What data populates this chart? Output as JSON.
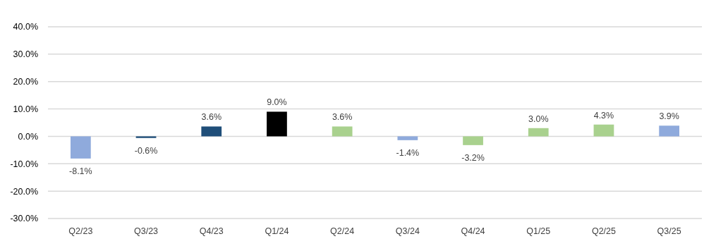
{
  "chart_data": {
    "type": "bar",
    "categories": [
      "Q2/23",
      "Q3/23",
      "Q4/23",
      "Q1/24",
      "Q2/24",
      "Q3/24",
      "Q4/24",
      "Q1/25",
      "Q2/25",
      "Q3/25"
    ],
    "values": [
      -8.1,
      -0.6,
      3.6,
      9.0,
      3.6,
      -1.4,
      -3.2,
      3.0,
      4.3,
      3.9
    ],
    "colors": [
      "#8faadc",
      "#1f4e79",
      "#1f4e79",
      "#000000",
      "#a9d18e",
      "#8faadc",
      "#a9d18e",
      "#a9d18e",
      "#a9d18e",
      "#8faadc"
    ],
    "value_labels": [
      "-8.1%",
      "-0.6%",
      "3.6%",
      "9.0%",
      "3.6%",
      "-1.4%",
      "-3.2%",
      "3.0%",
      "4.3%",
      "3.9%"
    ],
    "ylim": [
      -30,
      40
    ],
    "yticks": [
      {
        "value": -30,
        "label": "-30.0%"
      },
      {
        "value": -20,
        "label": "-20.0%"
      },
      {
        "value": -10,
        "label": "-10.0%"
      },
      {
        "value": 0,
        "label": "0.0%"
      },
      {
        "value": 10,
        "label": "10.0%"
      },
      {
        "value": 20,
        "label": "20.0%"
      },
      {
        "value": 30,
        "label": "30.0%"
      },
      {
        "value": 40,
        "label": "40.0%"
      }
    ],
    "grid": "y"
  }
}
